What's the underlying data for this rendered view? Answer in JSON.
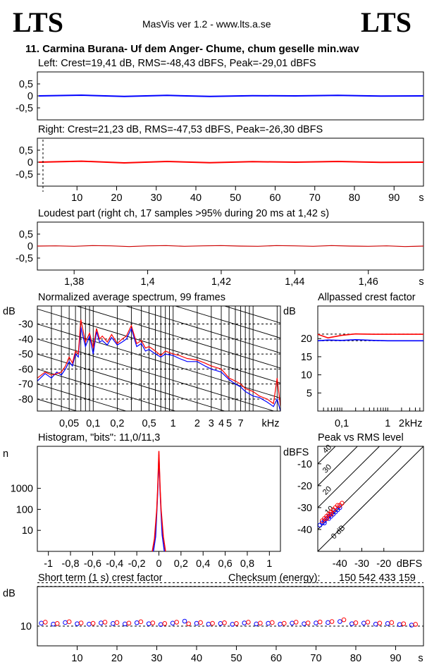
{
  "header": {
    "brand_left": "LTS",
    "brand_right": "LTS",
    "app_title": "MasVis ver 1.2 - www.lts.a.se",
    "file_title": "11. Carmina Burana- Uf dem Anger- Chume, chum geselle min.wav"
  },
  "colors": {
    "left_channel": "#0000ff",
    "right_channel": "#ff0000",
    "grid": "#000000",
    "waveform_zoom": "#cc0000"
  },
  "chart_data": [
    {
      "id": "left",
      "type": "line",
      "title": "Left: Crest=19,41 dB, RMS=-48,43 dBFS, Peak=-29,01 dBFS",
      "ylim": [
        -1,
        1
      ],
      "ytick_labels": [
        "0,5",
        "0",
        "-0,5"
      ],
      "xlim": [
        0,
        96
      ],
      "series": [
        {
          "channel": "left",
          "color": "#0000ff",
          "y": [
            0,
            0.03,
            -0.02,
            0.02,
            -0.02,
            0.01,
            0,
            0.02,
            -0.01,
            0
          ]
        }
      ]
    },
    {
      "id": "right",
      "type": "line",
      "title": "Right: Crest=21,23 dB, RMS=-47,53 dBFS, Peak=-26,30 dBFS",
      "ylim": [
        -1,
        1
      ],
      "ytick_labels": [
        "0,5",
        "0",
        "-0,5"
      ],
      "xlim": [
        0,
        96
      ],
      "x_ticks": [
        10,
        20,
        30,
        40,
        50,
        60,
        70,
        80,
        90
      ],
      "x_tick_labels": [
        "10",
        "20",
        "30",
        "40",
        "50",
        "60",
        "70",
        "80",
        "90",
        "s"
      ],
      "marker_x": 1.42,
      "series": [
        {
          "channel": "right",
          "color": "#ff0000",
          "y": [
            0,
            0.04,
            -0.03,
            0.03,
            -0.02,
            0.02,
            0,
            0.03,
            -0.01,
            0
          ]
        }
      ]
    },
    {
      "id": "loudest",
      "type": "line",
      "title": "Loudest part (right ch, 17 samples >95% during 20 ms at 1,42 s)",
      "ylim": [
        -1,
        1
      ],
      "ytick_labels": [
        "0,5",
        "0",
        "-0,5"
      ],
      "xlim": [
        1.37,
        1.475
      ],
      "x_ticks": [
        1.38,
        1.4,
        1.42,
        1.44,
        1.46
      ],
      "x_tick_labels": [
        "1,38",
        "1,4",
        "1,42",
        "1,44",
        "1,46",
        "s"
      ],
      "series": [
        {
          "channel": "right",
          "color": "#cc0000",
          "x": [
            1.37,
            1.375,
            1.38,
            1.385,
            1.39,
            1.395,
            1.4,
            1.405,
            1.41,
            1.415,
            1.42,
            1.425,
            1.43,
            1.435,
            1.44,
            1.445,
            1.45,
            1.455,
            1.46,
            1.465,
            1.47,
            1.475
          ],
          "y": [
            0,
            0.01,
            -0.01,
            0.02,
            0.01,
            -0.02,
            0.01,
            0.02,
            -0.01,
            0.01,
            0.02,
            0,
            -0.01,
            0.02,
            0.01,
            -0.01,
            0.02,
            0,
            -0.01,
            0.01,
            -0.02,
            0
          ]
        }
      ]
    },
    {
      "id": "spectrum",
      "type": "line",
      "title": "Normalized average spectrum, 99 frames",
      "y_unit": "dB",
      "ylim": [
        -88,
        -18
      ],
      "y_ticks": [
        -30,
        -40,
        -50,
        -60,
        -70,
        -80
      ],
      "ytick_labels": [
        "-30",
        "-40",
        "-50",
        "-60",
        "-70",
        "-80"
      ],
      "x_scale": "log",
      "xlim": [
        0.02,
        22
      ],
      "x_ticks": [
        0.05,
        0.1,
        0.2,
        0.5,
        1,
        2,
        3,
        4,
        5,
        7
      ],
      "x_tick_labels": [
        "0,05",
        "0,1",
        "0,2",
        "0,5",
        "1",
        "2",
        "3",
        "4",
        "5",
        "7",
        "kHz"
      ],
      "series": [
        {
          "channel": "left",
          "color": "#0000ff",
          "x": [
            0.02,
            0.025,
            0.03,
            0.035,
            0.04,
            0.045,
            0.05,
            0.055,
            0.06,
            0.065,
            0.07,
            0.08,
            0.09,
            0.1,
            0.11,
            0.12,
            0.13,
            0.15,
            0.17,
            0.2,
            0.23,
            0.26,
            0.3,
            0.35,
            0.4,
            0.45,
            0.5,
            0.6,
            0.7,
            0.8,
            1,
            1.2,
            1.5,
            2,
            2.5,
            3,
            4,
            5,
            6,
            7,
            8,
            10,
            12,
            15,
            18,
            20,
            22
          ],
          "y": [
            -68,
            -63,
            -66,
            -62,
            -64,
            -60,
            -55,
            -58,
            -50,
            -52,
            -32,
            -45,
            -38,
            -50,
            -35,
            -42,
            -41,
            -44,
            -39,
            -44,
            -42,
            -40,
            -33,
            -45,
            -43,
            -48,
            -47,
            -50,
            -52,
            -50,
            -51,
            -53,
            -55,
            -55,
            -58,
            -60,
            -62,
            -67,
            -70,
            -72,
            -75,
            -78,
            -79,
            -82,
            -85,
            -80,
            -88
          ]
        },
        {
          "channel": "right",
          "color": "#ff0000",
          "x": [
            0.02,
            0.025,
            0.03,
            0.035,
            0.04,
            0.045,
            0.05,
            0.055,
            0.06,
            0.065,
            0.07,
            0.08,
            0.09,
            0.1,
            0.11,
            0.12,
            0.13,
            0.15,
            0.17,
            0.2,
            0.23,
            0.26,
            0.3,
            0.35,
            0.4,
            0.45,
            0.5,
            0.6,
            0.7,
            0.8,
            1,
            1.2,
            1.5,
            2,
            2.5,
            3,
            4,
            5,
            6,
            7,
            8,
            10,
            12,
            15,
            18,
            20,
            22
          ],
          "y": [
            -66,
            -62,
            -64,
            -63,
            -62,
            -58,
            -52,
            -56,
            -48,
            -50,
            -27,
            -42,
            -36,
            -46,
            -33,
            -40,
            -38,
            -42,
            -37,
            -43,
            -40,
            -38,
            -31,
            -43,
            -41,
            -46,
            -45,
            -48,
            -51,
            -48,
            -50,
            -51,
            -53,
            -54,
            -56,
            -58,
            -60,
            -66,
            -68,
            -70,
            -73,
            -75,
            -78,
            -80,
            -83,
            -66,
            -85
          ]
        }
      ]
    },
    {
      "id": "allpass",
      "type": "line",
      "title": "Allpassed crest factor",
      "y_unit": "dB",
      "ylim": [
        0,
        29
      ],
      "y_ticks": [
        5,
        10,
        15,
        20
      ],
      "ytick_labels": [
        "5",
        "10",
        "15",
        "20"
      ],
      "x_scale": "log",
      "xlim": [
        0.03,
        6
      ],
      "x_ticks": [
        0.1,
        1,
        2
      ],
      "x_tick_labels": [
        "0,1",
        "1",
        "2",
        "kHz"
      ],
      "reference_levels": [
        19.41,
        21.23
      ],
      "series": [
        {
          "channel": "left",
          "color": "#0000ff",
          "x": [
            0.03,
            0.05,
            0.1,
            0.2,
            0.5,
            1,
            2,
            6
          ],
          "y": [
            19.4,
            19.6,
            19.5,
            19.7,
            19.5,
            19.4,
            19.4,
            19.4
          ]
        },
        {
          "channel": "right",
          "color": "#ff0000",
          "x": [
            0.03,
            0.05,
            0.1,
            0.2,
            0.5,
            1,
            2,
            6
          ],
          "y": [
            21.2,
            20.2,
            20.9,
            21.3,
            21.2,
            21.2,
            21.2,
            21.2
          ]
        }
      ]
    },
    {
      "id": "histogram",
      "type": "line",
      "title": "Histogram, \"bits\": 11,0/11,3",
      "y_unit": "n",
      "y_scale": "log",
      "ylim": [
        1,
        100000
      ],
      "y_ticks": [
        10,
        100,
        1000
      ],
      "ytick_labels": [
        "10",
        "100",
        "1000"
      ],
      "xlim": [
        -1.1,
        1.1
      ],
      "x_ticks": [
        -1,
        -0.8,
        -0.6,
        -0.4,
        -0.2,
        0,
        0.2,
        0.4,
        0.6,
        0.8,
        1
      ],
      "x_tick_labels": [
        "-1",
        "-0,8",
        "-0,6",
        "-0,4",
        "-0,2",
        "0",
        "0,2",
        "0,4",
        "0,6",
        "0,8",
        "1"
      ],
      "series": [
        {
          "channel": "left",
          "color": "#0000ff",
          "x": [
            -0.05,
            -0.03,
            -0.02,
            -0.01,
            0,
            0.01,
            0.02,
            0.03,
            0.05
          ],
          "y": [
            1,
            5,
            60,
            800,
            40000,
            900,
            70,
            6,
            1
          ]
        },
        {
          "channel": "right",
          "color": "#ff0000",
          "x": [
            -0.06,
            -0.04,
            -0.02,
            -0.01,
            0,
            0.01,
            0.02,
            0.04,
            0.06
          ],
          "y": [
            1,
            4,
            90,
            1200,
            60000,
            1300,
            100,
            5,
            1
          ]
        }
      ]
    },
    {
      "id": "peak_vs_rms",
      "type": "scatter",
      "title": "Peak vs RMS level",
      "xlabel": "dBFS",
      "ylabel": "dBFS",
      "xlim": [
        -50,
        -2
      ],
      "ylim": [
        -50,
        -2
      ],
      "x_ticks": [
        -40,
        -30,
        -20
      ],
      "x_tick_labels": [
        "-40",
        "-30",
        "-20",
        "dBFS"
      ],
      "y_ticks": [
        -10,
        -20,
        -30,
        -40
      ],
      "ytick_labels": [
        "-10",
        "-20",
        "-30",
        "-40"
      ],
      "crest_lines_db": [
        0,
        10,
        20,
        30,
        40
      ],
      "crest_line_labels": [
        "0 dB",
        "10",
        "20",
        "30",
        "40"
      ],
      "series": [
        {
          "channel": "left",
          "color": "#0000ff",
          "x": [
            -49,
            -48,
            -47,
            -47,
            -46,
            -45,
            -45,
            -44,
            -44,
            -43,
            -42,
            -41,
            -40
          ],
          "y": [
            -38,
            -37,
            -37,
            -36,
            -35,
            -35,
            -34,
            -34,
            -33,
            -33,
            -32,
            -31,
            -30
          ]
        },
        {
          "channel": "right",
          "color": "#ff0000",
          "x": [
            -48,
            -47,
            -46,
            -46,
            -45,
            -44,
            -44,
            -43,
            -43,
            -42,
            -41,
            -40,
            -39
          ],
          "y": [
            -36,
            -35,
            -35,
            -34,
            -33,
            -33,
            -32,
            -31,
            -31,
            -30,
            -29,
            -29,
            -28
          ]
        }
      ]
    },
    {
      "id": "short_term_crest",
      "type": "scatter",
      "title": "Short term (1 s) crest factor",
      "y_unit": "dB",
      "ylim": [
        0,
        30
      ],
      "y_ticks": [
        10
      ],
      "ytick_labels": [
        "10"
      ],
      "reference_levels": [
        19.41,
        21.23
      ],
      "xlim": [
        0,
        97
      ],
      "x_ticks": [
        10,
        20,
        30,
        40,
        50,
        60,
        70,
        80,
        90
      ],
      "x_tick_labels": [
        "10",
        "20",
        "30",
        "40",
        "50",
        "60",
        "70",
        "80",
        "90",
        "s"
      ],
      "series": [
        {
          "channel": "left",
          "color": "#0000ff",
          "x": [
            1,
            4,
            7,
            10,
            13,
            16,
            19,
            22,
            25,
            28,
            31,
            34,
            37,
            40,
            43,
            46,
            49,
            52,
            55,
            58,
            61,
            64,
            67,
            70,
            73,
            76,
            79,
            82,
            85,
            88,
            91,
            94
          ],
          "y": [
            11.5,
            11.0,
            11.8,
            11.2,
            11.0,
            11.6,
            11.3,
            11.1,
            11.7,
            11.2,
            10.8,
            11.5,
            12.5,
            11.4,
            11.0,
            11.3,
            10.9,
            11.6,
            11.1,
            11.4,
            11.0,
            11.5,
            11.2,
            11.6,
            11.8,
            12.3,
            11.2,
            11.5,
            11.0,
            11.3,
            10.8,
            10.5
          ]
        },
        {
          "channel": "right",
          "color": "#ff0000",
          "x": [
            2,
            5,
            8,
            11,
            14,
            17,
            20,
            23,
            26,
            29,
            32,
            35,
            38,
            41,
            44,
            47,
            50,
            53,
            56,
            59,
            62,
            65,
            68,
            71,
            74,
            77,
            80,
            83,
            86,
            89,
            92,
            95
          ],
          "y": [
            12.0,
            11.3,
            12.2,
            11.6,
            11.4,
            12.0,
            11.8,
            11.5,
            12.2,
            11.6,
            11.3,
            12.0,
            11.2,
            11.8,
            11.4,
            11.7,
            11.3,
            12.0,
            11.5,
            11.8,
            11.4,
            12.0,
            11.6,
            12.1,
            12.3,
            13.2,
            11.7,
            12.0,
            11.5,
            11.8,
            11.2,
            10.9
          ]
        }
      ]
    }
  ],
  "checksum": {
    "label": "Checksum (energy):",
    "value": "150 542 433 159"
  }
}
